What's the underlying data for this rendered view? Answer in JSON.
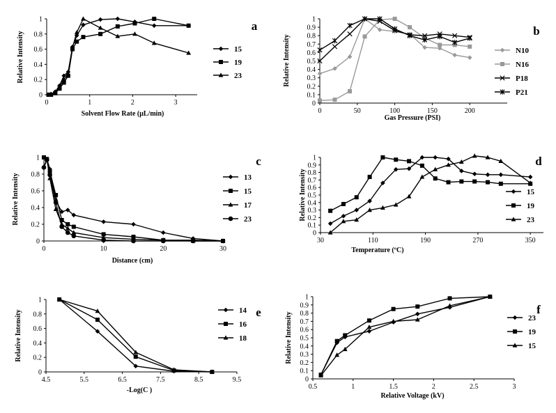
{
  "chart_data": [
    {
      "id": "a",
      "type": "line",
      "letter": "a",
      "xlabel": "Solvent Flow Rate (μL/min)",
      "ylabel": "Relative Intensity",
      "xlim": [
        0,
        3.5
      ],
      "ylim": [
        0,
        1.0
      ],
      "xticks": [
        "0",
        "1",
        "2",
        "3"
      ],
      "yticks": [
        "0",
        "0.2",
        "0.4",
        "0.6",
        "0.8",
        "1"
      ],
      "series": [
        {
          "name": "15",
          "marker": "diamond",
          "color": "#000000",
          "x": [
            0.05,
            0.1,
            0.2,
            0.3,
            0.4,
            0.5,
            0.6,
            0.7,
            0.85,
            1.25,
            1.65,
            2.05,
            2.5,
            3.3
          ],
          "y": [
            0.0,
            0.01,
            0.04,
            0.12,
            0.25,
            0.3,
            0.63,
            0.78,
            0.92,
            0.99,
            1.0,
            0.96,
            0.91,
            0.91
          ]
        },
        {
          "name": "19",
          "marker": "square",
          "color": "#000000",
          "x": [
            0.05,
            0.1,
            0.2,
            0.3,
            0.4,
            0.5,
            0.6,
            0.7,
            0.85,
            1.25,
            1.65,
            2.05,
            2.5,
            3.3
          ],
          "y": [
            0.0,
            0.0,
            0.02,
            0.08,
            0.16,
            0.25,
            0.6,
            0.7,
            0.76,
            0.8,
            0.9,
            0.94,
            1.0,
            0.91
          ]
        },
        {
          "name": "23",
          "marker": "triangle",
          "color": "#000000",
          "x": [
            0.05,
            0.1,
            0.2,
            0.3,
            0.4,
            0.5,
            0.6,
            0.7,
            0.85,
            1.25,
            1.65,
            2.05,
            2.5,
            3.3
          ],
          "y": [
            0.0,
            0.0,
            0.03,
            0.1,
            0.2,
            0.27,
            0.62,
            0.82,
            1.0,
            0.88,
            0.77,
            0.8,
            0.68,
            0.55
          ]
        }
      ]
    },
    {
      "id": "b",
      "type": "line",
      "letter": "b",
      "xlabel": "Gas Pressure (PSI)",
      "ylabel": "Relative Intensity",
      "xlim": [
        0,
        250
      ],
      "ylim": [
        0,
        1.0
      ],
      "xticks": [
        "0",
        "50",
        "100",
        "150",
        "200"
      ],
      "yticks": [
        "0",
        "0.1",
        "0.2",
        "0.3",
        "0.4",
        "0.5",
        "0.6",
        "0.7",
        "0.8",
        "0.9",
        "1"
      ],
      "series": [
        {
          "name": "N10",
          "marker": "diamond",
          "color": "#999999",
          "x": [
            0,
            20,
            40,
            60,
            80,
            100,
            120,
            140,
            160,
            180,
            200
          ],
          "y": [
            0.35,
            0.41,
            0.55,
            1.0,
            0.87,
            0.85,
            0.82,
            0.66,
            0.65,
            0.57,
            0.54
          ]
        },
        {
          "name": "N16",
          "marker": "square",
          "color": "#999999",
          "x": [
            0,
            20,
            40,
            60,
            80,
            100,
            120,
            140,
            160,
            180,
            200
          ],
          "y": [
            0.03,
            0.04,
            0.14,
            0.79,
            0.99,
            1.0,
            0.9,
            0.77,
            0.69,
            0.69,
            0.67
          ]
        },
        {
          "name": "P18",
          "marker": "x",
          "color": "#000000",
          "x": [
            0,
            20,
            40,
            60,
            80,
            100,
            120,
            140,
            160,
            180,
            200
          ],
          "y": [
            0.5,
            0.67,
            0.82,
            1.0,
            0.97,
            0.86,
            0.81,
            0.8,
            0.82,
            0.8,
            0.78
          ]
        },
        {
          "name": "P21",
          "marker": "star",
          "color": "#000000",
          "x": [
            0,
            20,
            40,
            60,
            80,
            100,
            120,
            140,
            160,
            180,
            200
          ],
          "y": [
            0.63,
            0.74,
            0.92,
            1.0,
            1.0,
            0.88,
            0.8,
            0.75,
            0.79,
            0.72,
            0.77
          ]
        }
      ]
    },
    {
      "id": "c",
      "type": "line",
      "letter": "c",
      "xlabel": "Distance (cm)",
      "ylabel": "Relative Intensity",
      "xlim": [
        0,
        30
      ],
      "ylim": [
        0,
        1.0
      ],
      "xticks": [
        "0",
        "10",
        "20",
        "30"
      ],
      "yticks": [
        "0",
        "0.2",
        "0.4",
        "0.6",
        "0.8",
        "1"
      ],
      "series": [
        {
          "name": "13",
          "marker": "diamond",
          "color": "#000000",
          "x": [
            0,
            0.5,
            1,
            2,
            3,
            4,
            5,
            10,
            15,
            20,
            25,
            30
          ],
          "y": [
            1.0,
            0.98,
            0.86,
            0.48,
            0.35,
            0.37,
            0.31,
            0.23,
            0.2,
            0.1,
            0.03,
            0.0
          ]
        },
        {
          "name": "15",
          "marker": "square",
          "color": "#000000",
          "x": [
            0,
            0.5,
            1,
            2,
            3,
            4,
            5,
            10,
            15,
            20,
            25,
            30
          ],
          "y": [
            1.0,
            0.98,
            0.83,
            0.55,
            0.25,
            0.2,
            0.17,
            0.08,
            0.05,
            0.01,
            0.01,
            0.0
          ]
        },
        {
          "name": "17",
          "marker": "triangle",
          "color": "#000000",
          "x": [
            0,
            0.5,
            1,
            2,
            3,
            4,
            5,
            10,
            15,
            20,
            25,
            30
          ],
          "y": [
            0.89,
            0.98,
            0.75,
            0.38,
            0.2,
            0.15,
            0.1,
            0.04,
            0.02,
            0.01,
            0.0,
            0.0
          ]
        },
        {
          "name": "23",
          "marker": "circle",
          "color": "#000000",
          "x": [
            0,
            0.5,
            1,
            2,
            3,
            4,
            5,
            10,
            15,
            20,
            25,
            30
          ],
          "y": [
            0.88,
            0.97,
            0.79,
            0.46,
            0.17,
            0.1,
            0.06,
            0.01,
            0.0,
            0.0,
            0.0,
            0.0
          ]
        }
      ]
    },
    {
      "id": "d",
      "type": "line",
      "letter": "d",
      "xlabel": "Temperature (ºC)",
      "ylabel": "Relative Intensity",
      "xlim": [
        30,
        370
      ],
      "ylim": [
        0,
        1.0
      ],
      "xticks": [
        "30",
        "110",
        "190",
        "270",
        "350"
      ],
      "yticks": [
        "0",
        "0.1",
        "0.2",
        "0.3",
        "0.4",
        "0.5",
        "0.6",
        "0.7",
        "0.8",
        "0.9",
        "1"
      ],
      "series": [
        {
          "name": "15",
          "marker": "diamond",
          "color": "#000000",
          "x": [
            45,
            65,
            85,
            105,
            125,
            145,
            165,
            185,
            205,
            225,
            245,
            265,
            285,
            305,
            350
          ],
          "y": [
            0.12,
            0.22,
            0.3,
            0.42,
            0.66,
            0.84,
            0.85,
            1.0,
            1.0,
            0.98,
            0.82,
            0.78,
            0.77,
            0.77,
            0.74
          ]
        },
        {
          "name": "19",
          "marker": "square",
          "color": "#000000",
          "x": [
            45,
            65,
            85,
            105,
            125,
            145,
            165,
            185,
            205,
            225,
            245,
            265,
            285,
            305,
            350
          ],
          "y": [
            0.29,
            0.38,
            0.47,
            0.74,
            1.0,
            0.97,
            0.95,
            0.89,
            0.72,
            0.67,
            0.68,
            0.68,
            0.67,
            0.65,
            0.65
          ]
        },
        {
          "name": "23",
          "marker": "triangle",
          "color": "#000000",
          "x": [
            45,
            65,
            85,
            105,
            125,
            145,
            165,
            185,
            205,
            225,
            245,
            265,
            285,
            305,
            350
          ],
          "y": [
            0.0,
            0.15,
            0.17,
            0.3,
            0.33,
            0.37,
            0.48,
            0.74,
            0.84,
            0.9,
            0.94,
            1.02,
            1.0,
            0.95,
            0.66
          ]
        }
      ]
    },
    {
      "id": "e",
      "type": "line",
      "letter": "e",
      "xlabel": "-Log(C )",
      "ylabel": "Relative Intensity",
      "xlim": [
        4.5,
        9.5
      ],
      "ylim": [
        0,
        1.0
      ],
      "xticks": [
        "4.5",
        "5.5",
        "6.5",
        "7.5",
        "8.5",
        "9.5"
      ],
      "yticks": [
        "0",
        "0.2",
        "0.4",
        "0.6",
        "0.8",
        "1"
      ],
      "series": [
        {
          "name": "14",
          "marker": "diamond",
          "color": "#000000",
          "x": [
            4.85,
            5.85,
            6.85,
            7.85,
            8.85
          ],
          "y": [
            1.0,
            0.56,
            0.08,
            0.01,
            0.0
          ]
        },
        {
          "name": "16",
          "marker": "square",
          "color": "#000000",
          "x": [
            4.85,
            5.85,
            6.85,
            7.85,
            8.85
          ],
          "y": [
            1.0,
            0.72,
            0.21,
            0.02,
            0.0
          ]
        },
        {
          "name": "18",
          "marker": "triangle",
          "color": "#000000",
          "x": [
            4.85,
            5.85,
            6.85,
            7.85,
            8.85
          ],
          "y": [
            1.0,
            0.84,
            0.27,
            0.03,
            0.0
          ]
        }
      ]
    },
    {
      "id": "f",
      "type": "line",
      "letter": "f",
      "xlabel": "Relative Voltage (kV)",
      "ylabel": "Relative Intensity",
      "xlim": [
        0.5,
        3.0
      ],
      "ylim": [
        0,
        1.0
      ],
      "xticks": [
        "0.5",
        "1",
        "1.5",
        "2",
        "2.5",
        "3"
      ],
      "yticks": [
        "0",
        "0.1",
        "0.2",
        "0.3",
        "0.4",
        "0.5",
        "0.6",
        "0.7",
        "0.8",
        "0.9",
        "1"
      ],
      "series": [
        {
          "name": "23",
          "marker": "diamond",
          "color": "#000000",
          "x": [
            0.6,
            0.8,
            0.9,
            1.2,
            1.5,
            1.8,
            2.2,
            2.7
          ],
          "y": [
            0.05,
            0.44,
            0.51,
            0.58,
            0.69,
            0.79,
            0.87,
            1.0
          ]
        },
        {
          "name": "19",
          "marker": "square",
          "color": "#000000",
          "x": [
            0.6,
            0.8,
            0.9,
            1.2,
            1.5,
            1.8,
            2.2,
            2.7
          ],
          "y": [
            0.05,
            0.46,
            0.53,
            0.71,
            0.85,
            0.88,
            0.98,
            1.0
          ]
        },
        {
          "name": "15",
          "marker": "triangle",
          "color": "#000000",
          "x": [
            0.6,
            0.8,
            0.9,
            1.2,
            1.5,
            1.8,
            2.2,
            2.7
          ],
          "y": [
            0.04,
            0.29,
            0.36,
            0.63,
            0.7,
            0.72,
            0.89,
            1.0
          ]
        }
      ]
    }
  ]
}
